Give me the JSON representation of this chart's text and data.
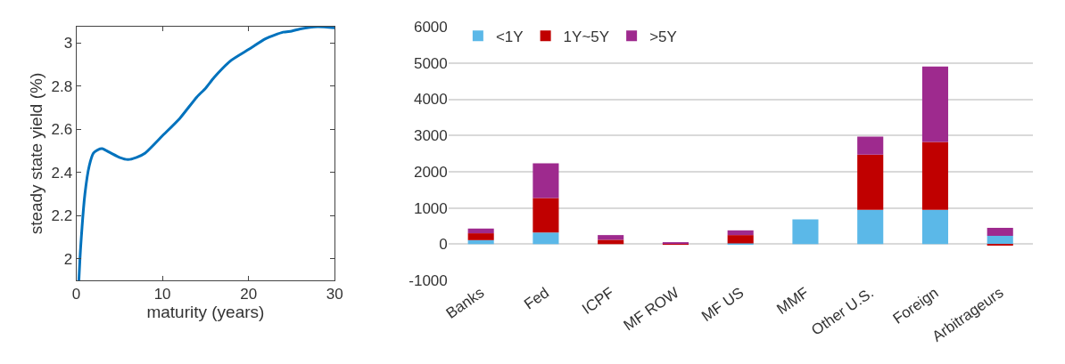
{
  "chart_data": [
    {
      "type": "line",
      "xlabel": "maturity (years)",
      "ylabel": "steady state yield (%)",
      "xlim": [
        0,
        30
      ],
      "xticks": [
        0,
        10,
        20,
        30
      ],
      "ylim": [
        1.9,
        3.075
      ],
      "yticks": [
        2,
        2.2,
        2.4,
        2.6,
        2.8,
        3
      ],
      "grid": false,
      "legend": false,
      "x": [
        0.3,
        0.5,
        1,
        1.5,
        2,
        2.5,
        3,
        4,
        5,
        6,
        7,
        8,
        10,
        12,
        14,
        15,
        16,
        18,
        20,
        22,
        24,
        25,
        26,
        28,
        30
      ],
      "series": [
        {
          "color": "#0072bd",
          "values": [
            1.9,
            2.05,
            2.3,
            2.43,
            2.49,
            2.505,
            2.51,
            2.49,
            2.47,
            2.46,
            2.47,
            2.49,
            2.57,
            2.65,
            2.75,
            2.79,
            2.84,
            2.92,
            2.97,
            3.02,
            3.05,
            3.055,
            3.065,
            3.075,
            3.07
          ]
        }
      ]
    },
    {
      "type": "bar",
      "stacked": true,
      "categories": [
        "Banks",
        "Fed",
        "ICPF",
        "MF ROW",
        "MF US",
        "MMF",
        "Other U.S.",
        "Foreign",
        "Arbitrageurs"
      ],
      "ylim": [
        -1000,
        6000
      ],
      "yticks": [
        -1000,
        0,
        1000,
        2000,
        3000,
        4000,
        5000,
        6000
      ],
      "grid": "y",
      "legend": "top left",
      "series": [
        {
          "name": "<1Y",
          "color": "#5bb8e8",
          "values": [
            110,
            320,
            null,
            0,
            20,
            680,
            950,
            950,
            230
          ]
        },
        {
          "name": "1Y~5Y",
          "color": "#c00000",
          "values": [
            190,
            950,
            120,
            20,
            230,
            0,
            1520,
            1870,
            -30
          ]
        },
        {
          "name": ">5Y",
          "color": "#9e2a8e",
          "values": [
            130,
            960,
            130,
            20,
            130,
            0,
            500,
            2080,
            220
          ]
        }
      ]
    }
  ]
}
